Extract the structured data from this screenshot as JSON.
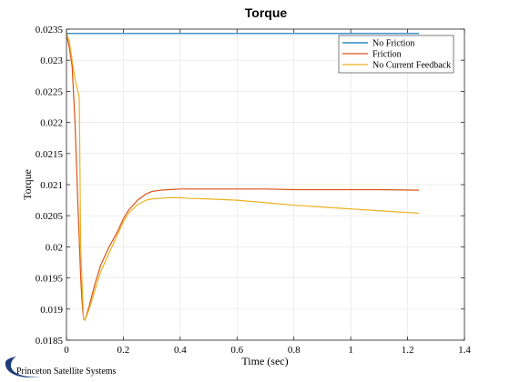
{
  "chart_data": {
    "type": "line",
    "title": "Torque",
    "xlabel": "Time (sec)",
    "ylabel": "Torque",
    "xlim": [
      0,
      1.4
    ],
    "ylim": [
      0.0185,
      0.0235
    ],
    "xticks": [
      0,
      0.2,
      0.4,
      0.6,
      0.8,
      1,
      1.2,
      1.4
    ],
    "xtick_labels": [
      "0",
      "0.2",
      "0.4",
      "0.6",
      "0.8",
      "1",
      "1.2",
      "1.4"
    ],
    "yticks": [
      0.0185,
      0.019,
      0.0195,
      0.02,
      0.0205,
      0.021,
      0.0215,
      0.022,
      0.0225,
      0.023,
      0.0235
    ],
    "ytick_labels": [
      "0.0185",
      "0.019",
      "0.0195",
      "0.02",
      "0.0205",
      "0.021",
      "0.0215",
      "0.022",
      "0.0225",
      "0.023",
      "0.0235"
    ],
    "grid": true,
    "legend_position": "top-right",
    "series": [
      {
        "name": "No Friction",
        "color": "#0072bd",
        "x": [
          0,
          1.24
        ],
        "y": [
          0.02343,
          0.02343
        ]
      },
      {
        "name": "Friction",
        "color": "#d95319",
        "x": [
          0,
          0.01,
          0.02,
          0.03,
          0.04,
          0.05,
          0.055,
          0.06,
          0.065,
          0.08,
          0.1,
          0.12,
          0.15,
          0.18,
          0.2,
          0.22,
          0.25,
          0.28,
          0.3,
          0.33,
          0.36,
          0.4,
          0.45,
          0.5,
          0.6,
          0.7,
          0.8,
          0.9,
          1.0,
          1.1,
          1.24
        ],
        "y": [
          0.02343,
          0.0232,
          0.0229,
          0.022,
          0.0207,
          0.0195,
          0.0191,
          0.01884,
          0.01882,
          0.01905,
          0.0194,
          0.0197,
          0.02,
          0.02025,
          0.02045,
          0.0206,
          0.02075,
          0.02085,
          0.02089,
          0.02091,
          0.02092,
          0.02093,
          0.02093,
          0.02093,
          0.02093,
          0.02093,
          0.02092,
          0.02092,
          0.02092,
          0.02092,
          0.02091
        ]
      },
      {
        "name": "No Current Feedback",
        "color": "#edb120",
        "x": [
          0,
          0.01,
          0.02,
          0.03,
          0.045,
          0.05,
          0.06,
          0.065,
          0.08,
          0.1,
          0.12,
          0.15,
          0.18,
          0.2,
          0.22,
          0.25,
          0.28,
          0.3,
          0.33,
          0.36,
          0.4,
          0.43,
          0.5,
          0.6,
          0.7,
          0.8,
          0.9,
          1.0,
          1.1,
          1.24
        ],
        "y": [
          0.02343,
          0.0233,
          0.023,
          0.0227,
          0.0224,
          0.02,
          0.01884,
          0.01882,
          0.019,
          0.0193,
          0.0196,
          0.0199,
          0.0202,
          0.0204,
          0.02055,
          0.02068,
          0.02075,
          0.02077,
          0.02078,
          0.02079,
          0.02079,
          0.02078,
          0.02077,
          0.02075,
          0.02071,
          0.02067,
          0.02064,
          0.02061,
          0.02058,
          0.02054
        ]
      }
    ]
  },
  "logo": {
    "text": "Princeton Satellite Systems"
  }
}
